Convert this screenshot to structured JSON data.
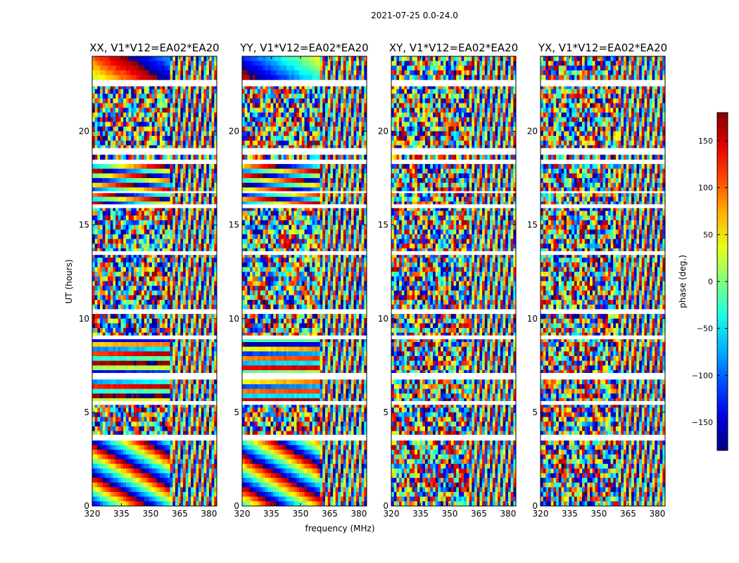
{
  "chart_data": {
    "type": "heatmap",
    "suptitle": "2021-07-25 0.0-24.0",
    "xlabel": "frequency (MHz)",
    "ylabel": "UT (hours)",
    "xlim": [
      320,
      384
    ],
    "ylim": [
      0,
      24
    ],
    "xticks": [
      320,
      335,
      350,
      365,
      380
    ],
    "yticks": [
      0,
      5,
      10,
      15,
      20
    ],
    "panels": [
      {
        "name": "XX",
        "title": "XX, V1*V12=EA02*EA20"
      },
      {
        "name": "YY",
        "title": "YY, V1*V12=EA02*EA20"
      },
      {
        "name": "XY",
        "title": "XY, V1*V12=EA02*EA20"
      },
      {
        "name": "YX",
        "title": "YX, V1*V12=EA02*EA20"
      }
    ],
    "colorbar": {
      "label": "phase (deg.)",
      "range": [
        -180,
        180
      ],
      "ticks": [
        150,
        100,
        50,
        0,
        -50,
        -100,
        -150
      ],
      "tick_labels": [
        "150",
        "100",
        "50",
        "0",
        "−50",
        "−100",
        "−150"
      ],
      "colormap": "jet"
    },
    "flagged_ut_hours": [
      [
        3.5,
        3.8
      ],
      [
        5.4,
        5.6
      ],
      [
        6.8,
        7.1
      ],
      [
        8.9,
        9.1
      ],
      [
        10.3,
        10.5
      ],
      [
        13.4,
        13.6
      ],
      [
        15.9,
        16.1
      ],
      [
        16.7,
        16.8
      ],
      [
        18.3,
        18.4
      ],
      [
        18.8,
        19.1
      ],
      [
        22.4,
        22.7
      ]
    ],
    "receiver_band_edge_mhz": 360
  }
}
